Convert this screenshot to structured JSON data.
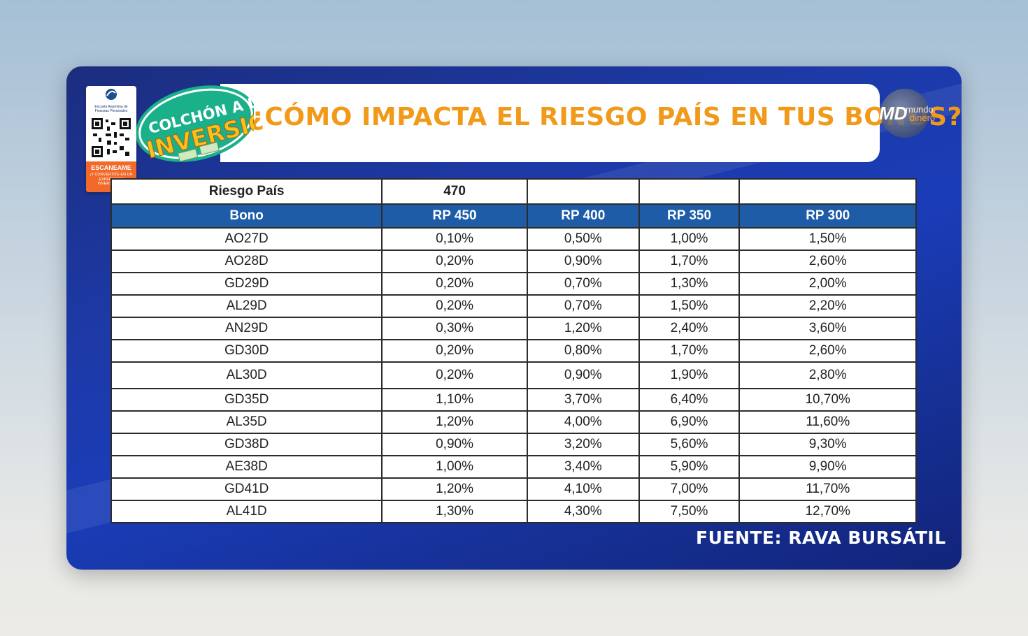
{
  "title": "¿CÓMO IMPACTA EL RIESGO PAÍS EN TUS BONOS?",
  "show_logo": {
    "line1": "COLCHÓN A LA",
    "line2": "INVERSIÓN"
  },
  "qr_card": {
    "school": "Escuela Argentina de Finanzas Personales",
    "scan": "ESCANEAME",
    "cta": "¡Y CONVERTITE EN UN EXPERTO EN INVERSIONES!"
  },
  "channel_logo": {
    "mark": "MD",
    "word1": "mundo",
    "word2": "dinero"
  },
  "table": {
    "riesgo_label": "Riesgo País",
    "riesgo_value": "470",
    "headers": [
      "Bono",
      "RP 450",
      "RP 400",
      "RP 350",
      "RP 300"
    ],
    "rows": [
      [
        "AO27D",
        "0,10%",
        "0,50%",
        "1,00%",
        "1,50%"
      ],
      [
        "AO28D",
        "0,20%",
        "0,90%",
        "1,70%",
        "2,60%"
      ],
      [
        "GD29D",
        "0,20%",
        "0,70%",
        "1,30%",
        "2,00%"
      ],
      [
        "AL29D",
        "0,20%",
        "0,70%",
        "1,50%",
        "2,20%"
      ],
      [
        "AN29D",
        "0,30%",
        "1,20%",
        "2,40%",
        "3,60%"
      ],
      [
        "GD30D",
        "0,20%",
        "0,80%",
        "1,70%",
        "2,60%"
      ],
      [
        "AL30D",
        "0,20%",
        "0,90%",
        "1,90%",
        "2,80%"
      ],
      [
        "GD35D",
        "1,10%",
        "3,70%",
        "6,40%",
        "10,70%"
      ],
      [
        "AL35D",
        "1,20%",
        "4,00%",
        "6,90%",
        "11,60%"
      ],
      [
        "GD38D",
        "0,90%",
        "3,20%",
        "5,60%",
        "9,30%"
      ],
      [
        "AE38D",
        "1,00%",
        "3,40%",
        "5,90%",
        "9,90%"
      ],
      [
        "GD41D",
        "1,20%",
        "4,10%",
        "7,00%",
        "11,70%"
      ],
      [
        "AL41D",
        "1,30%",
        "4,30%",
        "7,50%",
        "12,70%"
      ]
    ]
  },
  "source": "FUENTE: RAVA BURSÁTIL",
  "colors": {
    "title_orange": "#f19a1a",
    "header_blue": "#1e5ca8",
    "frame_blue": "#1a3cb8",
    "logo_green": "#19b08a"
  }
}
